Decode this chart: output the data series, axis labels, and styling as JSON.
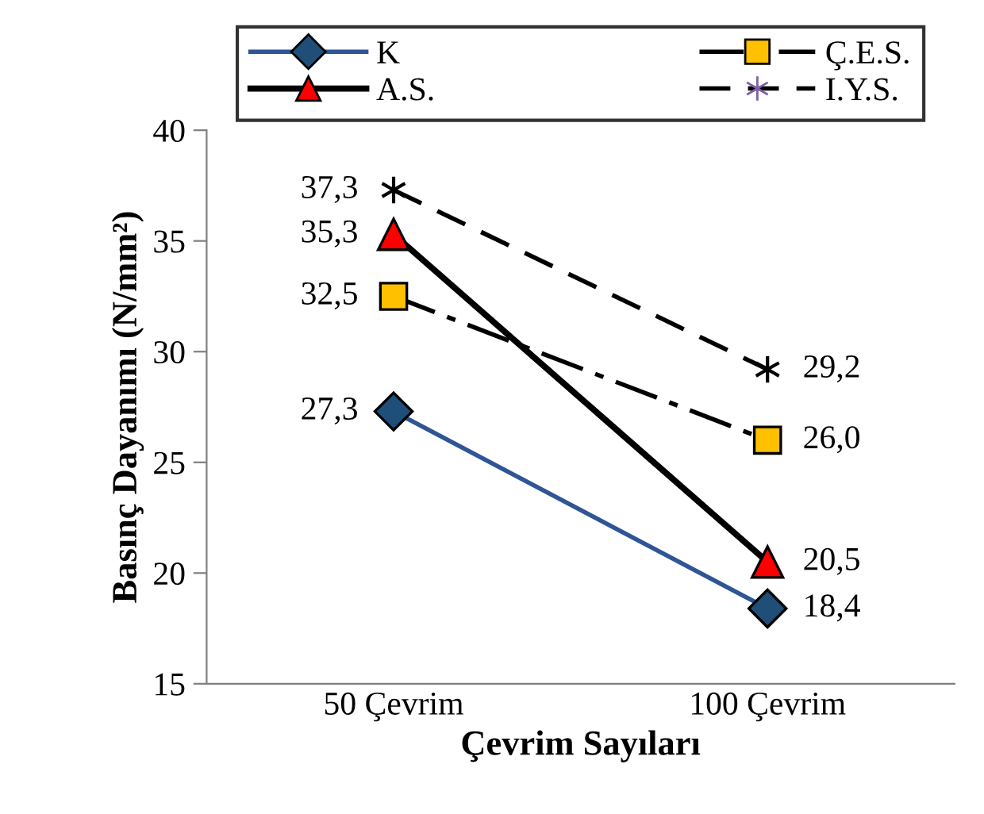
{
  "chart_data": {
    "type": "line",
    "xlabel": "Çevrim Sayıları",
    "ylabel": "Basınç Dayanımı (N/mm²)",
    "categories": [
      "50 Çevrim",
      "100 Çevrim"
    ],
    "series": [
      {
        "name": "K",
        "color": "#2f5597",
        "colors": [
          "#1f4e79",
          "#1f4e79"
        ],
        "marker": "diamond",
        "line_style": "solid",
        "values": [
          27.3,
          18.4
        ],
        "value_labels": [
          "27,3",
          "18,4"
        ]
      },
      {
        "name": "Ç.E.S.",
        "color": "#000000",
        "colors": [
          "#ffc000",
          "#ffc000"
        ],
        "marker": "square",
        "line_style": "dashdot",
        "values": [
          32.5,
          26.0
        ],
        "value_labels": [
          "32,5",
          "26,0"
        ]
      },
      {
        "name": "A.S.",
        "color": "#000000",
        "colors": [
          "#ff0000",
          "#ff0000"
        ],
        "marker": "triangle",
        "line_style": "solid",
        "values": [
          35.3,
          20.5
        ],
        "value_labels": [
          "35,3",
          "20,5"
        ]
      },
      {
        "name": "I.Y.S.",
        "color": "#000000",
        "colors": [
          "#000000",
          "#000000"
        ],
        "marker": "cross",
        "line_style": "dashed",
        "values": [
          37.3,
          29.2
        ],
        "value_labels": [
          "37,3",
          "29,2"
        ]
      }
    ],
    "ylim": [
      15,
      40
    ],
    "yticks": [
      15,
      20,
      25,
      30,
      35,
      40
    ],
    "grid": false,
    "legend": "top"
  }
}
